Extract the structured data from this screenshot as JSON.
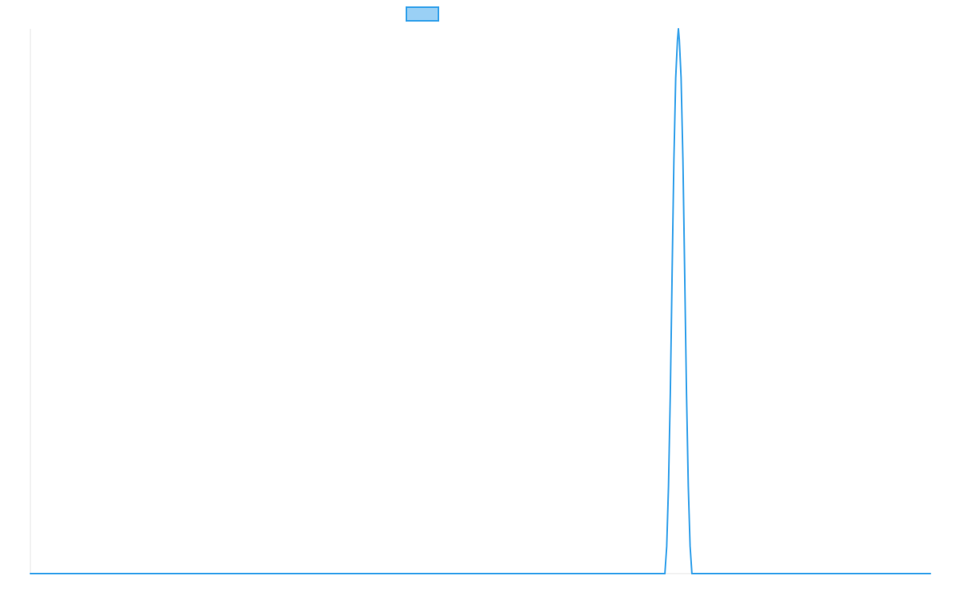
{
  "colors": {
    "series_line": "#36a2eb",
    "series_fill": "#9ad0f5",
    "axis_line": "#e6e6e6",
    "background": "#ffffff"
  },
  "chart_data": {
    "type": "line",
    "title": "",
    "xlabel": "",
    "ylabel": "",
    "grid": false,
    "legend_position": "top",
    "xlim": [
      0,
      1000
    ],
    "ylim": [
      0,
      1
    ],
    "series": [
      {
        "name": "",
        "color": "#36a2eb",
        "points": [
          [
            0,
            0
          ],
          [
            705,
            0
          ],
          [
            707,
            0.05
          ],
          [
            709,
            0.16
          ],
          [
            711,
            0.33
          ],
          [
            713,
            0.55
          ],
          [
            715,
            0.76
          ],
          [
            717,
            0.91
          ],
          [
            719,
            0.98
          ],
          [
            720,
            1.0
          ],
          [
            721,
            0.98
          ],
          [
            723,
            0.91
          ],
          [
            725,
            0.76
          ],
          [
            727,
            0.55
          ],
          [
            729,
            0.33
          ],
          [
            731,
            0.16
          ],
          [
            733,
            0.05
          ],
          [
            735,
            0
          ],
          [
            1000,
            0
          ]
        ]
      }
    ]
  }
}
